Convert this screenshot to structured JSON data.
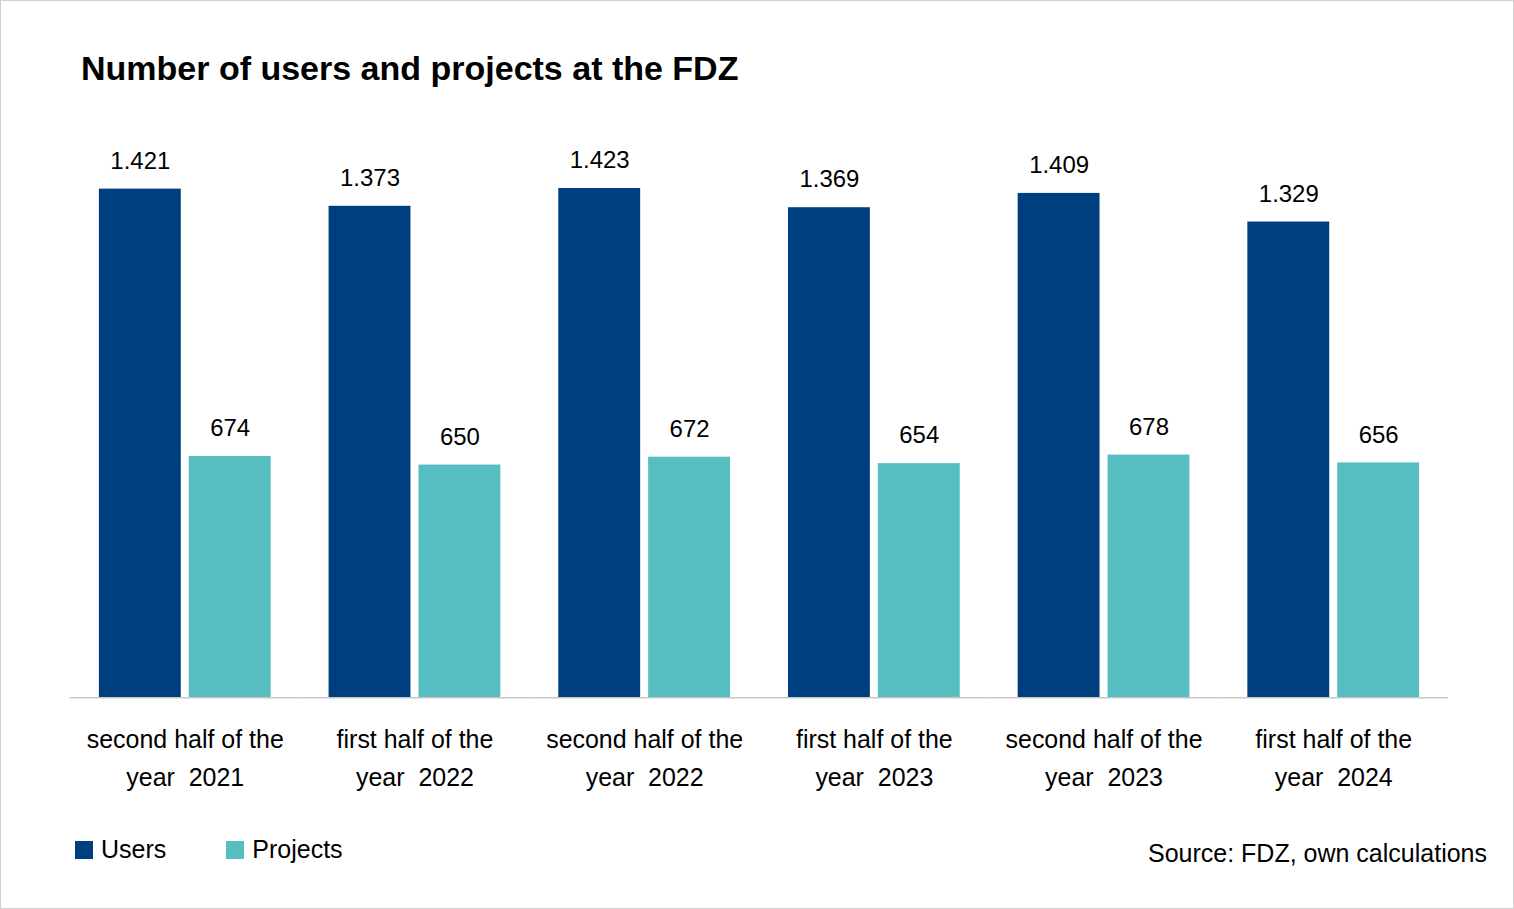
{
  "chart_data": {
    "type": "bar",
    "title": "Number of users and projects at the FDZ",
    "categories": [
      "second half of the year  2021",
      "first half of the year  2022",
      "second half of the year  2022",
      "first half of the year  2023",
      "second half of the year  2023",
      "first half of the year  2024"
    ],
    "series": [
      {
        "name": "Users",
        "color": "#003f7f",
        "values": [
          1421,
          1373,
          1423,
          1369,
          1409,
          1329
        ],
        "value_labels": [
          "1.421",
          "1.373",
          "1.423",
          "1.369",
          "1.409",
          "1.329"
        ]
      },
      {
        "name": "Projects",
        "color": "#56bec0",
        "values": [
          674,
          650,
          672,
          654,
          678,
          656
        ]
      }
    ],
    "data_labels": true,
    "tick_labels": "x",
    "legend": "bottom",
    "source": "Source: FDZ, own calculations"
  }
}
